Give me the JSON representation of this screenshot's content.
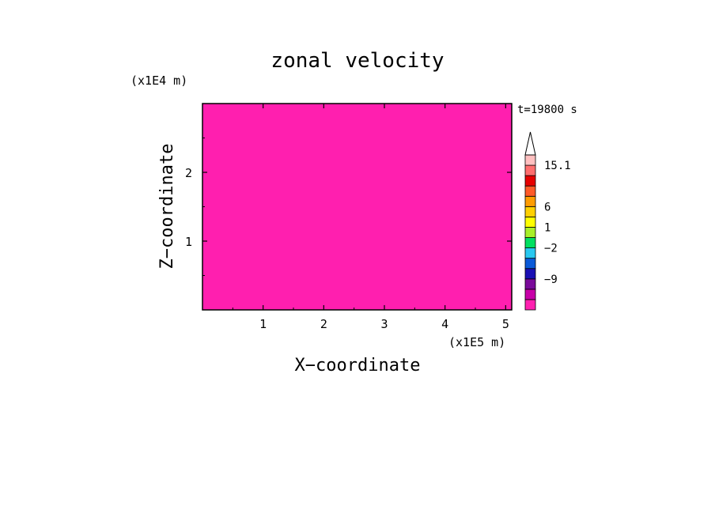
{
  "chart_data": {
    "type": "heatmap",
    "title": "zonal velocity",
    "xlabel": "X−coordinate",
    "ylabel": "Z−coordinate",
    "x_unit": "(x1E5 m)",
    "y_unit": "(x1E4 m)",
    "time_label": "t=19800 s",
    "xlim": [
      0.0,
      5.1
    ],
    "ylim": [
      0.0,
      3.0
    ],
    "x_ticks": [
      {
        "value": 1,
        "label": "1"
      },
      {
        "value": 2,
        "label": "2"
      },
      {
        "value": 3,
        "label": "3"
      },
      {
        "value": 4,
        "label": "4"
      },
      {
        "value": 5,
        "label": "5"
      }
    ],
    "y_ticks": [
      {
        "value": 1,
        "label": "1"
      },
      {
        "value": 2,
        "label": "2"
      }
    ],
    "colorbar": {
      "levels": [
        {
          "color": "#ff20b0"
        },
        {
          "color": "#c800a8"
        },
        {
          "color": "#7a0a9a"
        },
        {
          "color": "#1a10b4"
        },
        {
          "color": "#0a5ad8"
        },
        {
          "color": "#28c8f0"
        },
        {
          "color": "#00e060"
        },
        {
          "color": "#a8f028"
        },
        {
          "color": "#ffff00"
        },
        {
          "color": "#ffd000"
        },
        {
          "color": "#ff9c00"
        },
        {
          "color": "#ff5a28"
        },
        {
          "color": "#e60000"
        },
        {
          "color": "#ff6e6e"
        },
        {
          "color": "#ffc0c0"
        }
      ],
      "labels": [
        {
          "value": "15.1"
        },
        {
          "value": "6"
        },
        {
          "value": "1"
        },
        {
          "value": "−2"
        },
        {
          "value": "−9"
        }
      ]
    }
  }
}
